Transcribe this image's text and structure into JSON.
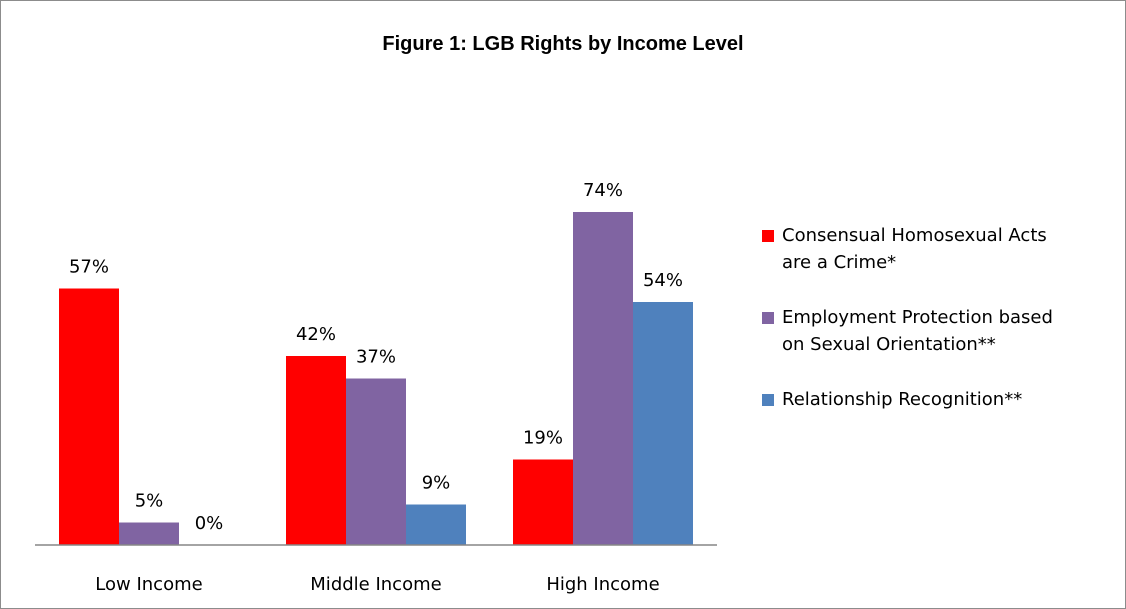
{
  "chart_data": {
    "type": "bar",
    "title": "Figure 1: LGB Rights by Income Level",
    "xlabel": "",
    "ylabel": "",
    "categories": [
      "Low Income",
      "Middle Income",
      "High Income"
    ],
    "series": [
      {
        "name": "Consensual Homosexual Acts are a Crime*",
        "color": "#ff0000",
        "values": [
          57,
          42,
          19
        ],
        "labels": [
          "57%",
          "42%",
          "19%"
        ]
      },
      {
        "name": "Employment Protection based on Sexual Orientation**",
        "color": "#8064a2",
        "values": [
          5,
          37,
          74
        ],
        "labels": [
          "5%",
          "37%",
          "74%"
        ]
      },
      {
        "name": "Relationship Recognition**",
        "color": "#4f81bd",
        "values": [
          0,
          9,
          54
        ],
        "labels": [
          "0%",
          "9%",
          "54%"
        ]
      }
    ],
    "ylim": [
      0,
      100
    ],
    "grid": false,
    "legend_position": "right"
  },
  "legend": {
    "items": [
      {
        "line1": "Consensual Homosexual Acts",
        "line2": "are a Crime*"
      },
      {
        "line1": "Employment Protection based",
        "line2": "on Sexual Orientation**"
      },
      {
        "line1": "Relationship Recognition**",
        "line2": ""
      }
    ]
  }
}
